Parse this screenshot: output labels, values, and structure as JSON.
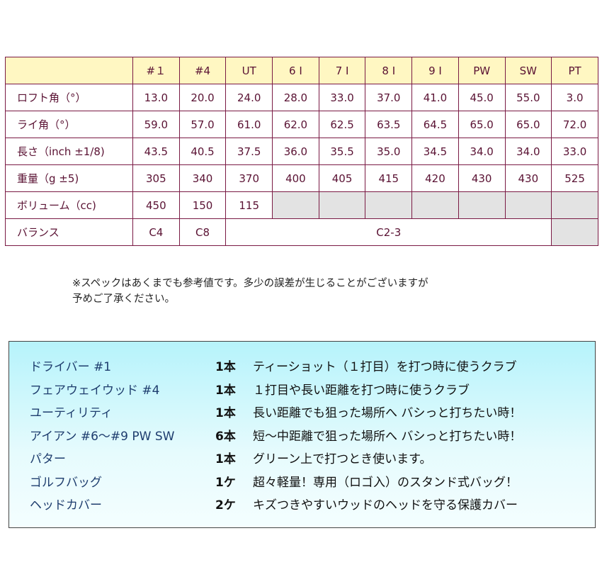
{
  "spec_table": {
    "columns": [
      "#１",
      "#4",
      "UT",
      "6 I",
      "7 I",
      "8 I",
      "9 I",
      "PW",
      "SW",
      "PT"
    ],
    "rows": [
      {
        "label": "ロフト角（°）",
        "values": [
          "13.0",
          "20.0",
          "24.0",
          "28.0",
          "33.0",
          "37.0",
          "41.0",
          "45.0",
          "55.0",
          "3.0"
        ]
      },
      {
        "label": "ライ角（°）",
        "values": [
          "59.0",
          "57.0",
          "61.0",
          "62.0",
          "62.5",
          "63.5",
          "64.5",
          "65.0",
          "65.0",
          "72.0"
        ]
      },
      {
        "label": "長さ（inch ±1/8)",
        "values": [
          "43.5",
          "40.5",
          "37.5",
          "36.0",
          "35.5",
          "35.0",
          "34.5",
          "34.0",
          "34.0",
          "33.0"
        ]
      },
      {
        "label": "重量（g ±5)",
        "values": [
          "305",
          "340",
          "370",
          "400",
          "405",
          "415",
          "420",
          "430",
          "430",
          "525"
        ]
      },
      {
        "label": "ボリューム（cc)",
        "values": [
          "450",
          "150",
          "115"
        ]
      },
      {
        "label": "バランス",
        "values": [
          "C4",
          "C8",
          "C2-3"
        ]
      }
    ]
  },
  "note": [
    "※スペックはあくまでも参考値です。多少の誤差が生じることがございますが",
    "予めご了承ください。"
  ],
  "set_contents": [
    {
      "name": "ドライバー #1",
      "qty": "1本",
      "desc": "ティーショット（１打目）を打つ時に使うクラブ"
    },
    {
      "name": "フェアウェイウッド #4",
      "qty": "1本",
      "desc": "１打目や長い距離を打つ時に使うクラブ"
    },
    {
      "name": "ユーティリティ",
      "qty": "1本",
      "desc": "長い距離でも狙った場所へ バシっと打ちたい時！"
    },
    {
      "name": "アイアン #6〜#9 PW SW",
      "qty": "6本",
      "desc": "短〜中距離で狙った場所へ バシっと打ちたい時！"
    },
    {
      "name": "パター",
      "qty": "1本",
      "desc": "グリーン上で打つとき使います。"
    },
    {
      "name": "ゴルフバッグ",
      "qty": "1ケ",
      "desc": "超々軽量！専用（ロゴ入）のスタンド式バッグ！"
    },
    {
      "name": "ヘッドカバー",
      "qty": "2ケ",
      "desc": "キズつきやすいウッドのヘッドを守る保護カバー"
    }
  ]
}
